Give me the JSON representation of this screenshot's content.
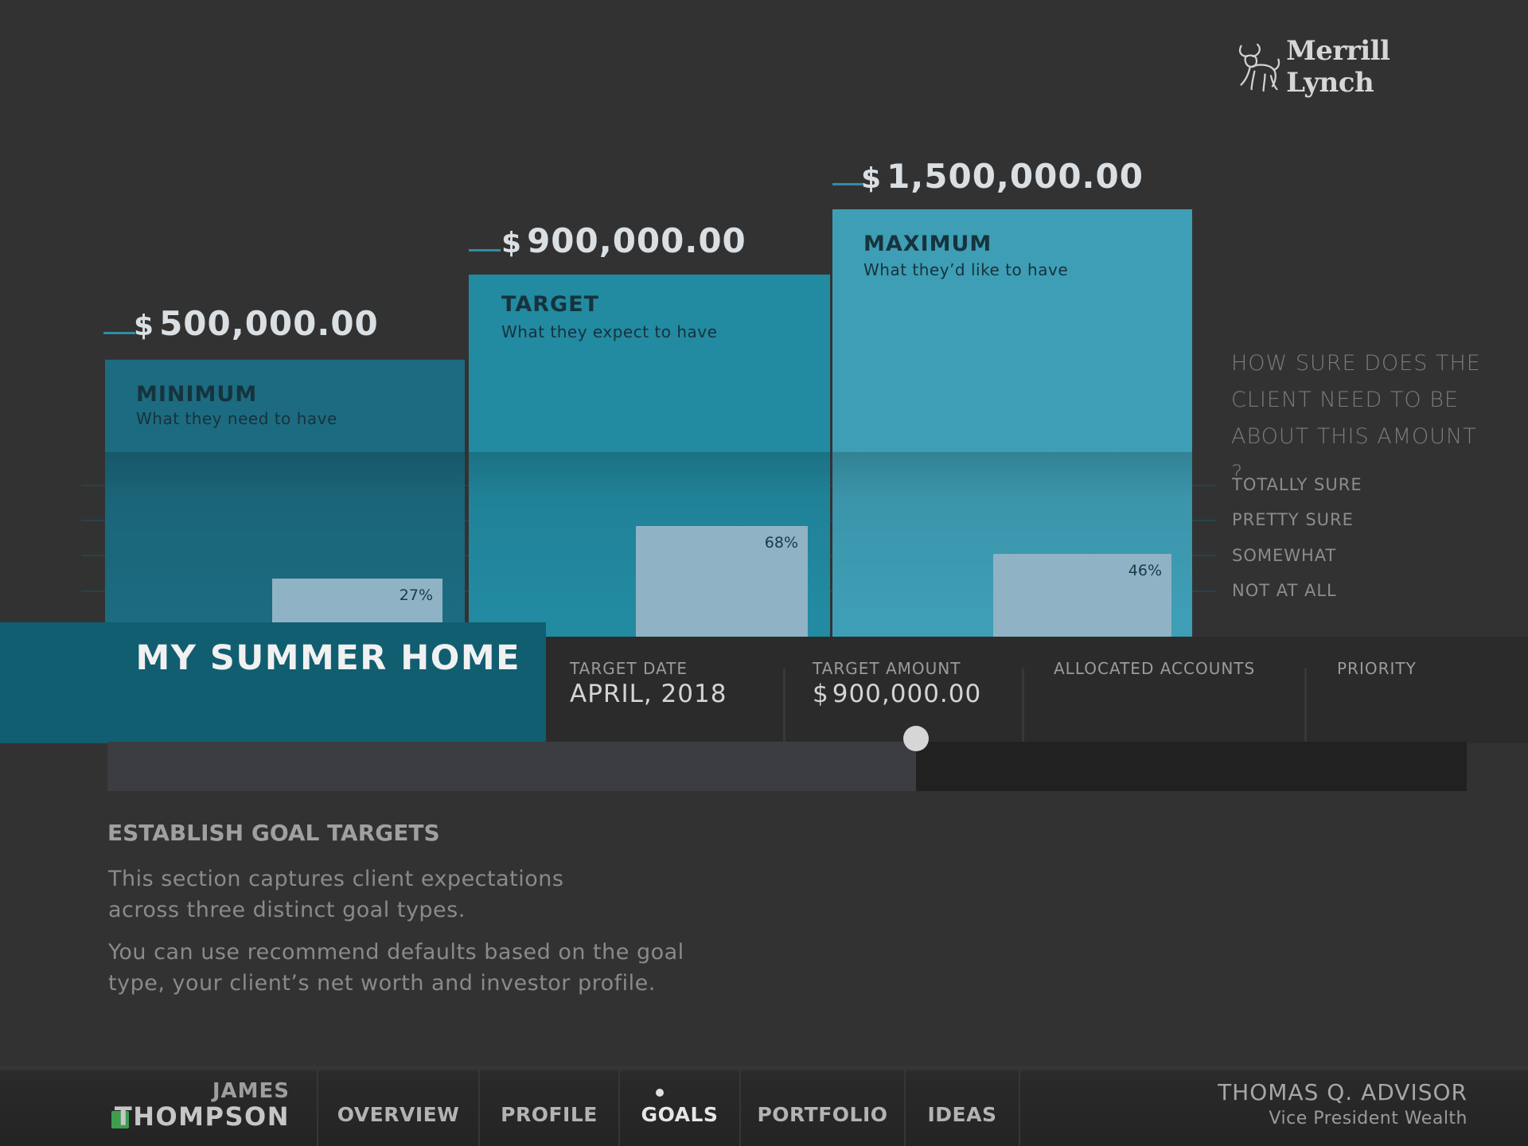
{
  "brand": {
    "logo_text": "Merrill Lynch",
    "logo_icon": "bull-icon"
  },
  "goal_columns": [
    {
      "amount_currency": "$",
      "amount": "500,000.00",
      "title": "MINIMUM",
      "subtitle": "What they need to have",
      "certainty_percent": "27%",
      "certainty_value": 27
    },
    {
      "amount_currency": "$",
      "amount": "900,000.00",
      "title": "TARGET",
      "subtitle": "What they expect to have",
      "certainty_percent": "68%",
      "certainty_value": 68
    },
    {
      "amount_currency": "$",
      "amount": "1,500,000.00",
      "title": "MAXIMUM",
      "subtitle": "What they’d like to have",
      "certainty_percent": "46%",
      "certainty_value": 46
    }
  ],
  "certainty": {
    "question": "HOW SURE DOES THE CLIENT NEED TO BE ABOUT THIS AMOUNT ?",
    "levels": [
      "TOTALLY SURE",
      "PRETTY SURE",
      "SOMEWHAT",
      "NOT AT ALL"
    ]
  },
  "goal": {
    "name": "MY SUMMER HOME",
    "target_date_label": "TARGET DATE",
    "target_date": "APRIL, 2018",
    "target_amount_label": "TARGET AMOUNT",
    "target_amount_currency": "$",
    "target_amount": "900,000.00",
    "allocated_accounts_label": "ALLOCATED ACCOUNTS",
    "priority_label": "PRIORITY",
    "progress_fraction": 0.595
  },
  "description": {
    "title": "ESTABLISH GOAL TARGETS",
    "para1_line1": "This section captures client expectations",
    "para1_line2": "across three distinct goal types.",
    "para2_line1": "You can use recommend defaults based on the goal",
    "para2_line2": "type, your client’s net worth and investor profile."
  },
  "nav": {
    "client_first": "JAMES",
    "client_last": "THOMPSON",
    "client_status_color": "#3e9d4f",
    "tabs": [
      "OVERVIEW",
      "PROFILE",
      "GOALS",
      "PORTFOLIO",
      "IDEAS"
    ],
    "active_tab": "GOALS",
    "advisor_name": "THOMAS Q. ADVISOR",
    "advisor_role": "Vice President Wealth"
  },
  "colors": {
    "background": "#333232",
    "minimum": "#1c6b80",
    "target": "#228aa1",
    "maximum": "#3e9eb5",
    "goal_header": "#115e70",
    "certainty_bar": "#8fb3c5"
  }
}
